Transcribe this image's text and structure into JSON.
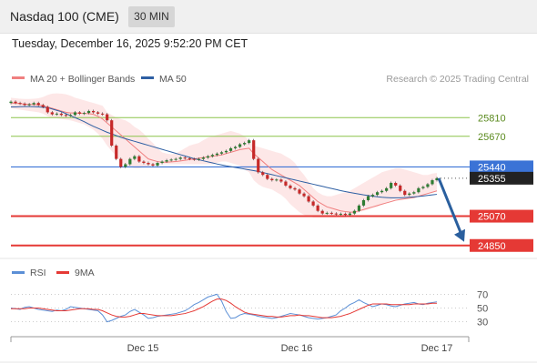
{
  "header": {
    "title": "Nasdaq 100 (CME)",
    "timeframe": "30 MIN"
  },
  "datetime": "Tuesday, December 16, 2025 9:52:20 PM CET",
  "legend": {
    "ma20_label": "MA 20 + Bollinger Bands",
    "ma50_label": "MA 50",
    "credit": "Research © 2025 Trading Central"
  },
  "rsi_legend": {
    "rsi_label": "RSI",
    "ma9_label": "9MA"
  },
  "colors": {
    "ma20": "#f08080",
    "ma50": "#2e5fa3",
    "band": "#fde3e3",
    "rsi": "#5b8fd6",
    "rsi_ma": "#e53935",
    "support": "#e53935",
    "resistance": "#8bc34a",
    "pivot": "#3b73d6",
    "bull": "#2e7d32",
    "bear": "#c62828",
    "arrow": "#2a5f9e"
  },
  "chart_data": {
    "type": "candlestick",
    "ylim": [
      24780,
      26010
    ],
    "x_ticks": [
      "Dec 15",
      "Dec 16",
      "Dec 17"
    ],
    "levels": [
      {
        "value": 25810,
        "label": "25810",
        "kind": "resistance"
      },
      {
        "value": 25670,
        "label": "25670",
        "kind": "resistance"
      },
      {
        "value": 25440,
        "label": "25440",
        "kind": "pivot"
      },
      {
        "value": 25355,
        "label": "25355",
        "kind": "current"
      },
      {
        "value": 25070,
        "label": "25070",
        "kind": "support"
      },
      {
        "value": 24850,
        "label": "24850",
        "kind": "support"
      }
    ],
    "last_price": 25355,
    "forecast_target": 24850,
    "close": [
      25930,
      25920,
      25915,
      25905,
      25910,
      25920,
      25905,
      25890,
      25850,
      25835,
      25840,
      25830,
      25825,
      25830,
      25850,
      25840,
      25845,
      25860,
      25850,
      25840,
      25835,
      25790,
      25600,
      25500,
      25440,
      25460,
      25500,
      25520,
      25480,
      25470,
      25460,
      25450,
      25470,
      25480,
      25490,
      25495,
      25500,
      25510,
      25505,
      25500,
      25495,
      25500,
      25510,
      25520,
      25530,
      25540,
      25550,
      25560,
      25580,
      25590,
      25610,
      25620,
      25640,
      25500,
      25400,
      25380,
      25350,
      25340,
      25345,
      25330,
      25300,
      25280,
      25270,
      25240,
      25220,
      25180,
      25150,
      25110,
      25090,
      25095,
      25090,
      25085,
      25088,
      25080,
      25090,
      25110,
      25150,
      25190,
      25220,
      25230,
      25250,
      25260,
      25280,
      25320,
      25300,
      25260,
      25230,
      25240,
      25250,
      25280,
      25290,
      25310,
      25340,
      25355
    ],
    "bb_upper": [
      25960,
      25955,
      25952,
      25950,
      25950,
      25952,
      25955,
      25965,
      25980,
      25990,
      25992,
      25990,
      25985,
      25975,
      25960,
      25950,
      25940,
      25930,
      25920,
      25910,
      25900,
      25850,
      25830,
      25810,
      25800,
      25790,
      25770,
      25740,
      25720,
      25690,
      25650,
      25620,
      25580,
      25550,
      25540,
      25535,
      25540,
      25560,
      25580,
      25600,
      25610,
      25620,
      25640,
      25660,
      25670,
      25680,
      25690,
      25700,
      25710,
      25700,
      25690,
      25670,
      25640,
      25600,
      25590,
      25580,
      25570,
      25560,
      25550,
      25540,
      25520,
      25500,
      25470,
      25420,
      25380,
      25330,
      25280,
      25250,
      25230,
      25220,
      25220,
      25230,
      25240,
      25250,
      25260,
      25280,
      25300,
      25320,
      25340,
      25360,
      25380,
      25400,
      25410,
      25420,
      25430,
      25430,
      25420,
      25410,
      25400,
      25390,
      25380,
      25380,
      25390,
      25395
    ],
    "bb_lower": [
      25880,
      25875,
      25870,
      25865,
      25860,
      25855,
      25850,
      25840,
      25820,
      25810,
      25805,
      25800,
      25795,
      25790,
      25780,
      25770,
      25760,
      25740,
      25720,
      25690,
      25650,
      25600,
      25560,
      25520,
      25480,
      25450,
      25440,
      25430,
      25430,
      25440,
      25445,
      25450,
      25455,
      25460,
      25460,
      25460,
      25460,
      25460,
      25460,
      25460,
      25460,
      25460,
      25460,
      25460,
      25460,
      25470,
      25480,
      25480,
      25470,
      25460,
      25450,
      25420,
      25400,
      25340,
      25310,
      25290,
      25280,
      25270,
      25250,
      25230,
      25200,
      25160,
      25130,
      25100,
      25080,
      25070,
      25060,
      25060,
      25060,
      25060,
      25060,
      25060,
      25060,
      25060,
      25070,
      25080,
      25100,
      25110,
      25120,
      25130,
      25140,
      25160,
      25170,
      25190,
      25200,
      25200,
      25200,
      25200,
      25210,
      25220,
      25230,
      25240,
      25250,
      25260
    ],
    "ma50": [
      25890,
      25890,
      25892,
      25893,
      25893,
      25892,
      25890,
      25888,
      25885,
      25875,
      25865,
      25855,
      25840,
      25825,
      25810,
      25795,
      25780,
      25762,
      25745,
      25730,
      25715,
      25700,
      25688,
      25675,
      25662,
      25652,
      25642,
      25632,
      25622,
      25612,
      25602,
      25592,
      25582,
      25572,
      25562,
      25552,
      25542,
      25532,
      25522,
      25512,
      25502,
      25494,
      25486,
      25478,
      25470,
      25462,
      25455,
      25448,
      25442,
      25436,
      25430,
      25424,
      25418,
      25412,
      25406,
      25398,
      25390,
      25382,
      25374,
      25366,
      25358,
      25350,
      25342,
      25334,
      25326,
      25318,
      25310,
      25302,
      25294,
      25286,
      25278,
      25270,
      25262,
      25255,
      25248,
      25242,
      25236,
      25230,
      25225,
      25220,
      25216,
      25212,
      25210,
      25208,
      25208,
      25208,
      25210,
      25212,
      25215,
      25218,
      25222,
      25226,
      25230,
      25234
    ],
    "ma20": [
      25920,
      25918,
      25915,
      25912,
      25910,
      25908,
      25905,
      25900,
      25890,
      25880,
      25870,
      25860,
      25850,
      25845,
      25845,
      25843,
      25842,
      25840,
      25835,
      25820,
      25800,
      25770,
      25740,
      25710,
      25680,
      25650,
      25620,
      25590,
      25560,
      25530,
      25500,
      25490,
      25480,
      25475,
      25475,
      25478,
      25480,
      25485,
      25490,
      25495,
      25500,
      25505,
      25510,
      25515,
      25520,
      25525,
      25530,
      25540,
      25550,
      25560,
      25570,
      25575,
      25580,
      25540,
      25510,
      25480,
      25450,
      25420,
      25400,
      25380,
      25360,
      25340,
      25320,
      25300,
      25270,
      25240,
      25210,
      25180,
      25160,
      25140,
      25130,
      25120,
      25110,
      25105,
      25100,
      25100,
      25110,
      25120,
      25130,
      25140,
      25150,
      25160,
      25170,
      25180,
      25190,
      25195,
      25200,
      25205,
      25210,
      25220,
      25230,
      25240,
      25250,
      25260
    ],
    "rsi": [
      50,
      49,
      48,
      51,
      52,
      50,
      48,
      47,
      46,
      45,
      47,
      46,
      48,
      52,
      51,
      50,
      49,
      48,
      47,
      46,
      40,
      30,
      32,
      35,
      38,
      40,
      45,
      48,
      44,
      40,
      35,
      36,
      38,
      39,
      40,
      41,
      42,
      44,
      46,
      50,
      55,
      58,
      62,
      66,
      68,
      70,
      60,
      45,
      35,
      36,
      40,
      42,
      41,
      40,
      38,
      37,
      36,
      35,
      36,
      38,
      40,
      42,
      41,
      40,
      38,
      36,
      35,
      34,
      35,
      36,
      38,
      40,
      46,
      50,
      55,
      58,
      62,
      58,
      55,
      52,
      54,
      56,
      55,
      53,
      52,
      54,
      56,
      57,
      58,
      56,
      55,
      57,
      58,
      59
    ],
    "rsi_ma": [
      49,
      49,
      49,
      49,
      50,
      50,
      50,
      49,
      48,
      47,
      46,
      46,
      46,
      47,
      48,
      49,
      49,
      49,
      48,
      48,
      46,
      43,
      40,
      38,
      37,
      37,
      38,
      40,
      42,
      42,
      41,
      40,
      39,
      39,
      39,
      39,
      40,
      41,
      42,
      44,
      46,
      49,
      52,
      56,
      60,
      63,
      63,
      61,
      57,
      52,
      48,
      44,
      42,
      41,
      40,
      39,
      38,
      38,
      37,
      37,
      38,
      39,
      39,
      40,
      39,
      39,
      38,
      37,
      36,
      36,
      36,
      37,
      38,
      40,
      42,
      45,
      48,
      51,
      54,
      56,
      56,
      56,
      56,
      55,
      55,
      55,
      55,
      55,
      56,
      56,
      56,
      56,
      57,
      57
    ],
    "rsi_levels": [
      70,
      50,
      30
    ],
    "rsi_ylim": [
      15,
      85
    ]
  }
}
